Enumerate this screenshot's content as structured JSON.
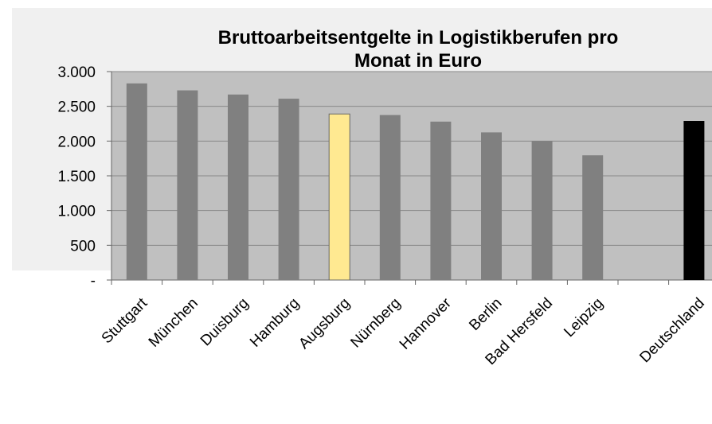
{
  "chart_data": {
    "type": "bar",
    "title": [
      "Bruttoarbeitsentgelte in Logistikberufen pro",
      "Monat in Euro"
    ],
    "categories": [
      "Stuttgart",
      "München",
      "Duisburg",
      "Hamburg",
      "Augsburg",
      "Nürnberg",
      "Hannover",
      "Berlin",
      "Bad Hersfeld",
      "Leipzig",
      null,
      "Deutschland"
    ],
    "values": [
      2830,
      2730,
      2670,
      2610,
      2390,
      2375,
      2280,
      2125,
      2000,
      1795,
      null,
      2290
    ],
    "colors": [
      "#808080",
      "#808080",
      "#808080",
      "#808080",
      "#ffe991",
      "#808080",
      "#808080",
      "#808080",
      "#808080",
      "#808080",
      null,
      "#000000"
    ],
    "ylim": [
      0,
      3000
    ],
    "yticks": [
      {
        "value": 0,
        "label": "-"
      },
      500,
      {
        "value": 1000,
        "label": "1.000"
      },
      {
        "value": 1500,
        "label": "1.500"
      },
      {
        "value": 2000,
        "label": "2.000"
      },
      {
        "value": 2500,
        "label": "2.500"
      },
      {
        "value": 3000,
        "label": "3.000"
      }
    ],
    "grid": true
  }
}
